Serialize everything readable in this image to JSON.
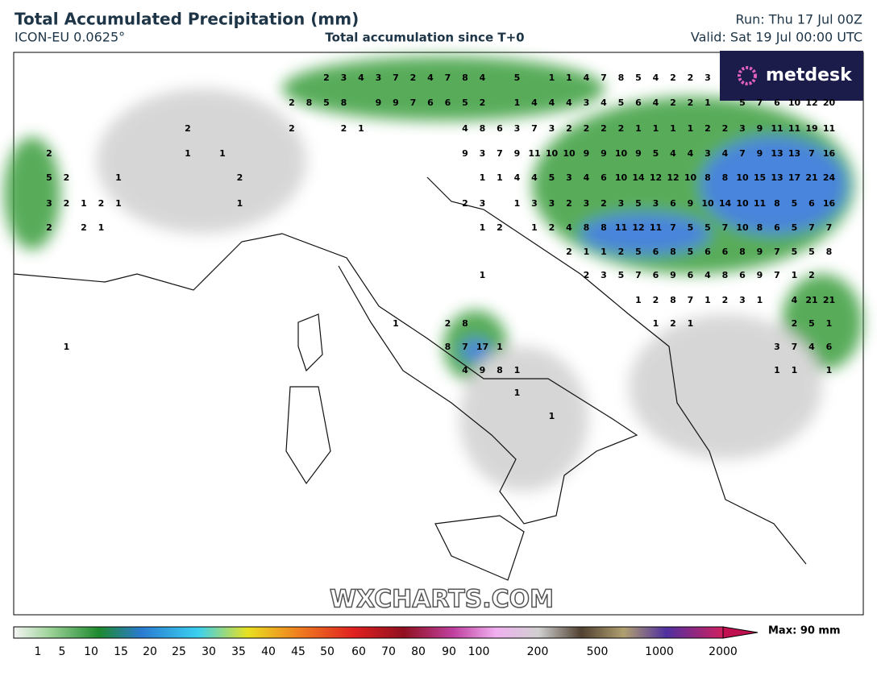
{
  "header": {
    "title": "Total Accumulated Precipitation (mm)",
    "model": "ICON-EU 0.0625°",
    "subtitle": "Total accumulation since T+0",
    "run": "Run: Thu 17 Jul 00Z",
    "valid": "Valid: Sat 19 Jul 00:00 UTC"
  },
  "logo": "metdesk",
  "watermark": "WXCHARTS.COM",
  "map_labels": [
    [
      null,
      null,
      null,
      null,
      null,
      null,
      null,
      null,
      null,
      null,
      null,
      null,
      null,
      null,
      null,
      null,
      2,
      3,
      4,
      3,
      7,
      2,
      4,
      7,
      8,
      4,
      null,
      5,
      null,
      1,
      1,
      4,
      7,
      8,
      5,
      4,
      2,
      2,
      3,
      null,
      null,
      null,
      null,
      null,
      null,
      null
    ],
    [
      null,
      null,
      null,
      null,
      null,
      null,
      null,
      null,
      null,
      null,
      null,
      null,
      null,
      null,
      2,
      8,
      5,
      8,
      null,
      9,
      9,
      7,
      6,
      6,
      5,
      2,
      null,
      1,
      4,
      4,
      4,
      3,
      4,
      5,
      6,
      4,
      2,
      2,
      1,
      null,
      5,
      7,
      6,
      10,
      12,
      20
    ],
    [
      null,
      null,
      null,
      null,
      null,
      null,
      null,
      null,
      2,
      null,
      null,
      null,
      null,
      null,
      2,
      null,
      null,
      2,
      1,
      null,
      null,
      null,
      null,
      null,
      4,
      8,
      6,
      3,
      7,
      3,
      2,
      2,
      2,
      2,
      1,
      1,
      1,
      1,
      2,
      2,
      3,
      9,
      11,
      11,
      19,
      11
    ],
    [
      2,
      null,
      null,
      null,
      null,
      null,
      null,
      null,
      1,
      null,
      1,
      null,
      null,
      null,
      null,
      null,
      null,
      null,
      null,
      null,
      null,
      null,
      null,
      null,
      9,
      3,
      7,
      9,
      11,
      10,
      10,
      9,
      9,
      10,
      9,
      5,
      4,
      4,
      3,
      4,
      7,
      9,
      13,
      13,
      7,
      16
    ],
    [
      5,
      2,
      null,
      null,
      1,
      null,
      null,
      null,
      null,
      null,
      null,
      2,
      null,
      null,
      null,
      null,
      null,
      null,
      null,
      null,
      null,
      null,
      null,
      null,
      null,
      1,
      1,
      4,
      4,
      5,
      3,
      4,
      6,
      10,
      14,
      12,
      12,
      10,
      8,
      8,
      10,
      15,
      13,
      17,
      21,
      24
    ],
    [
      3,
      2,
      1,
      2,
      1,
      null,
      null,
      null,
      null,
      null,
      null,
      1,
      null,
      null,
      null,
      null,
      null,
      null,
      null,
      null,
      null,
      null,
      null,
      null,
      2,
      3,
      null,
      1,
      3,
      3,
      2,
      3,
      2,
      3,
      5,
      3,
      6,
      9,
      10,
      14,
      10,
      11,
      8,
      5,
      6,
      16
    ],
    [
      2,
      null,
      2,
      1,
      null,
      null,
      null,
      null,
      null,
      null,
      null,
      null,
      null,
      null,
      null,
      null,
      null,
      null,
      null,
      null,
      null,
      null,
      null,
      null,
      null,
      1,
      2,
      null,
      1,
      2,
      4,
      8,
      8,
      11,
      12,
      11,
      7,
      5,
      5,
      7,
      10,
      8,
      6,
      5,
      7,
      7
    ],
    [
      null,
      null,
      null,
      null,
      null,
      null,
      null,
      null,
      null,
      null,
      null,
      null,
      null,
      null,
      null,
      null,
      null,
      null,
      null,
      null,
      null,
      null,
      null,
      null,
      null,
      null,
      null,
      null,
      null,
      null,
      2,
      1,
      1,
      2,
      5,
      6,
      8,
      5,
      6,
      6,
      8,
      9,
      7,
      5,
      5,
      8
    ],
    [
      null,
      null,
      null,
      null,
      null,
      null,
      null,
      null,
      null,
      null,
      null,
      null,
      null,
      null,
      null,
      null,
      null,
      null,
      null,
      null,
      null,
      null,
      null,
      null,
      null,
      1,
      null,
      null,
      null,
      null,
      null,
      2,
      3,
      5,
      7,
      6,
      9,
      6,
      4,
      8,
      6,
      9,
      7,
      1,
      2,
      null
    ],
    [
      null,
      null,
      null,
      null,
      null,
      null,
      null,
      null,
      null,
      null,
      null,
      null,
      null,
      null,
      null,
      null,
      null,
      null,
      null,
      null,
      null,
      null,
      null,
      null,
      null,
      null,
      null,
      null,
      null,
      null,
      null,
      null,
      null,
      null,
      1,
      2,
      8,
      7,
      1,
      2,
      3,
      1,
      null,
      4,
      21,
      21
    ],
    [
      null,
      null,
      null,
      null,
      null,
      null,
      null,
      null,
      null,
      null,
      null,
      null,
      null,
      null,
      null,
      null,
      null,
      null,
      null,
      null,
      1,
      null,
      null,
      2,
      8,
      null,
      null,
      null,
      null,
      null,
      null,
      null,
      null,
      null,
      null,
      1,
      2,
      1,
      null,
      null,
      null,
      null,
      null,
      2,
      5,
      1
    ],
    [
      null,
      1,
      null,
      null,
      null,
      null,
      null,
      null,
      null,
      null,
      null,
      null,
      null,
      null,
      null,
      null,
      null,
      null,
      null,
      null,
      null,
      null,
      null,
      8,
      7,
      17,
      1,
      null,
      null,
      null,
      null,
      null,
      null,
      null,
      null,
      null,
      null,
      null,
      null,
      null,
      null,
      null,
      3,
      7,
      4,
      6
    ],
    [
      null,
      null,
      null,
      null,
      null,
      null,
      null,
      null,
      null,
      null,
      null,
      null,
      null,
      null,
      null,
      null,
      null,
      null,
      null,
      null,
      null,
      null,
      null,
      null,
      4,
      9,
      8,
      1,
      null,
      null,
      null,
      null,
      null,
      null,
      null,
      null,
      null,
      null,
      null,
      null,
      null,
      null,
      1,
      1,
      null,
      1
    ],
    [
      null,
      null,
      null,
      null,
      null,
      null,
      null,
      null,
      null,
      null,
      null,
      null,
      null,
      null,
      null,
      null,
      null,
      null,
      null,
      null,
      null,
      null,
      null,
      null,
      null,
      null,
      null,
      1,
      null,
      null,
      null,
      null,
      null,
      null,
      null,
      null,
      null,
      null,
      null,
      null,
      null,
      null,
      null,
      null,
      null,
      null
    ],
    [
      null,
      null,
      null,
      null,
      null,
      null,
      null,
      null,
      null,
      null,
      null,
      null,
      null,
      null,
      null,
      null,
      null,
      null,
      null,
      null,
      null,
      null,
      null,
      null,
      null,
      null,
      null,
      null,
      null,
      1,
      null,
      null,
      null,
      null,
      null,
      null,
      null,
      null,
      null,
      null,
      null,
      null,
      null,
      null,
      null,
      null
    ]
  ],
  "legend": {
    "labels": [
      1,
      5,
      10,
      15,
      20,
      25,
      30,
      35,
      40,
      45,
      50,
      60,
      70,
      80,
      90,
      100,
      200,
      500,
      1000,
      2000
    ],
    "max": "Max: 90 mm"
  }
}
